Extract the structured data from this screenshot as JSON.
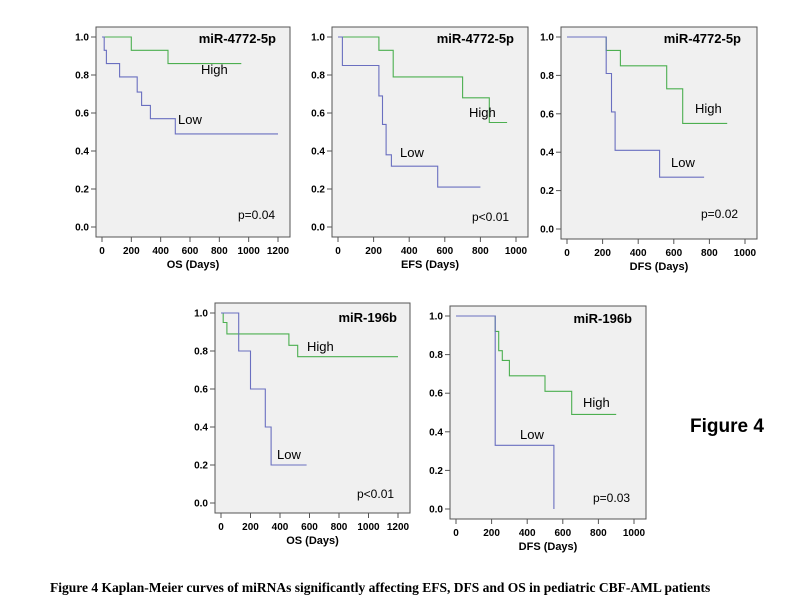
{
  "figure_label": "Figure 4",
  "caption": "Figure 4 Kaplan-Meier curves of miRNAs significantly affecting EFS, DFS and OS in pediatric CBF-AML patients",
  "colors": {
    "high": "#4caf50",
    "low": "#6a6fc0",
    "panel_bg": "#f0f0f0",
    "axis": "#555555"
  },
  "chart_data": [
    {
      "type": "line",
      "title": "miR-4772-5p",
      "xlabel": "OS (Days)",
      "ylabel": "",
      "xlim": [
        0,
        1200
      ],
      "ylim": [
        0,
        1.0
      ],
      "x_ticks": [
        "0",
        "200",
        "400",
        "600",
        "800",
        "1000",
        "1200"
      ],
      "y_ticks": [
        "0.0",
        "0.2",
        "0.4",
        "0.6",
        "0.8",
        "1.0"
      ],
      "p_value": "p=0.04",
      "series": [
        {
          "name": "High",
          "x": [
            0,
            200,
            200,
            450,
            450,
            950
          ],
          "y": [
            1.0,
            1.0,
            0.93,
            0.93,
            0.86,
            0.86
          ]
        },
        {
          "name": "Low",
          "x": [
            0,
            15,
            15,
            30,
            30,
            120,
            120,
            240,
            240,
            270,
            270,
            330,
            330,
            500,
            500,
            1200
          ],
          "y": [
            1.0,
            1.0,
            0.93,
            0.93,
            0.86,
            0.86,
            0.79,
            0.79,
            0.71,
            0.71,
            0.64,
            0.64,
            0.57,
            0.57,
            0.49,
            0.49
          ]
        }
      ]
    },
    {
      "type": "line",
      "title": "miR-4772-5p",
      "xlabel": "EFS (Days)",
      "ylabel": "",
      "xlim": [
        0,
        1000
      ],
      "ylim": [
        0,
        1.0
      ],
      "x_ticks": [
        "0",
        "200",
        "400",
        "600",
        "800",
        "1000"
      ],
      "y_ticks": [
        "0.0",
        "0.2",
        "0.4",
        "0.6",
        "0.8",
        "1.0"
      ],
      "p_value": "p<0.01",
      "series": [
        {
          "name": "High",
          "x": [
            0,
            230,
            230,
            310,
            310,
            700,
            700,
            850,
            850,
            950
          ],
          "y": [
            1.0,
            1.0,
            0.93,
            0.93,
            0.79,
            0.79,
            0.68,
            0.68,
            0.55,
            0.55
          ]
        },
        {
          "name": "Low",
          "x": [
            0,
            25,
            25,
            230,
            230,
            250,
            250,
            270,
            270,
            300,
            300,
            560,
            560,
            800
          ],
          "y": [
            1.0,
            1.0,
            0.85,
            0.85,
            0.69,
            0.69,
            0.54,
            0.54,
            0.38,
            0.38,
            0.32,
            0.32,
            0.21,
            0.21
          ]
        }
      ]
    },
    {
      "type": "line",
      "title": "miR-4772-5p",
      "xlabel": "DFS (Days)",
      "ylabel": "",
      "xlim": [
        0,
        1000
      ],
      "ylim": [
        0,
        1.0
      ],
      "x_ticks": [
        "0",
        "200",
        "400",
        "600",
        "800",
        "1000"
      ],
      "y_ticks": [
        "0.0",
        "0.2",
        "0.4",
        "0.6",
        "0.8",
        "1.0"
      ],
      "p_value": "p=0.02",
      "series": [
        {
          "name": "High",
          "x": [
            0,
            220,
            220,
            300,
            300,
            560,
            560,
            650,
            650,
            900
          ],
          "y": [
            1.0,
            1.0,
            0.93,
            0.93,
            0.85,
            0.85,
            0.73,
            0.73,
            0.55,
            0.55
          ]
        },
        {
          "name": "Low",
          "x": [
            0,
            220,
            220,
            250,
            250,
            270,
            270,
            520,
            520,
            770
          ],
          "y": [
            1.0,
            1.0,
            0.81,
            0.81,
            0.61,
            0.61,
            0.41,
            0.41,
            0.27,
            0.27
          ]
        }
      ]
    },
    {
      "type": "line",
      "title": "miR-196b",
      "xlabel": "OS (Days)",
      "ylabel": "",
      "xlim": [
        0,
        1200
      ],
      "ylim": [
        0,
        1.0
      ],
      "x_ticks": [
        "0",
        "200",
        "400",
        "600",
        "800",
        "1000",
        "1200"
      ],
      "y_ticks": [
        "0.0",
        "0.2",
        "0.4",
        "0.6",
        "0.8",
        "1.0"
      ],
      "p_value": "p<0.01",
      "series": [
        {
          "name": "High",
          "x": [
            0,
            15,
            15,
            40,
            40,
            460,
            460,
            520,
            520,
            1200
          ],
          "y": [
            1.0,
            1.0,
            0.95,
            0.95,
            0.89,
            0.89,
            0.83,
            0.83,
            0.77,
            0.77
          ]
        },
        {
          "name": "Low",
          "x": [
            0,
            120,
            120,
            200,
            200,
            300,
            300,
            340,
            340,
            580
          ],
          "y": [
            1.0,
            1.0,
            0.8,
            0.8,
            0.6,
            0.6,
            0.4,
            0.4,
            0.2,
            0.2
          ]
        }
      ]
    },
    {
      "type": "line",
      "title": "miR-196b",
      "xlabel": "DFS (Days)",
      "ylabel": "",
      "xlim": [
        0,
        1000
      ],
      "ylim": [
        0,
        1.0
      ],
      "x_ticks": [
        "0",
        "200",
        "400",
        "600",
        "800",
        "1000"
      ],
      "y_ticks": [
        "0.0",
        "0.2",
        "0.4",
        "0.6",
        "0.8",
        "1.0"
      ],
      "p_value": "p=0.03",
      "series": [
        {
          "name": "High",
          "x": [
            0,
            220,
            220,
            240,
            240,
            260,
            260,
            300,
            300,
            500,
            500,
            650,
            650,
            900
          ],
          "y": [
            1.0,
            1.0,
            0.92,
            0.92,
            0.82,
            0.82,
            0.77,
            0.77,
            0.69,
            0.69,
            0.61,
            0.61,
            0.49,
            0.49
          ]
        },
        {
          "name": "Low",
          "x": [
            0,
            220,
            220,
            550,
            550
          ],
          "y": [
            1.0,
            1.0,
            0.33,
            0.33,
            0.0
          ]
        }
      ]
    }
  ]
}
